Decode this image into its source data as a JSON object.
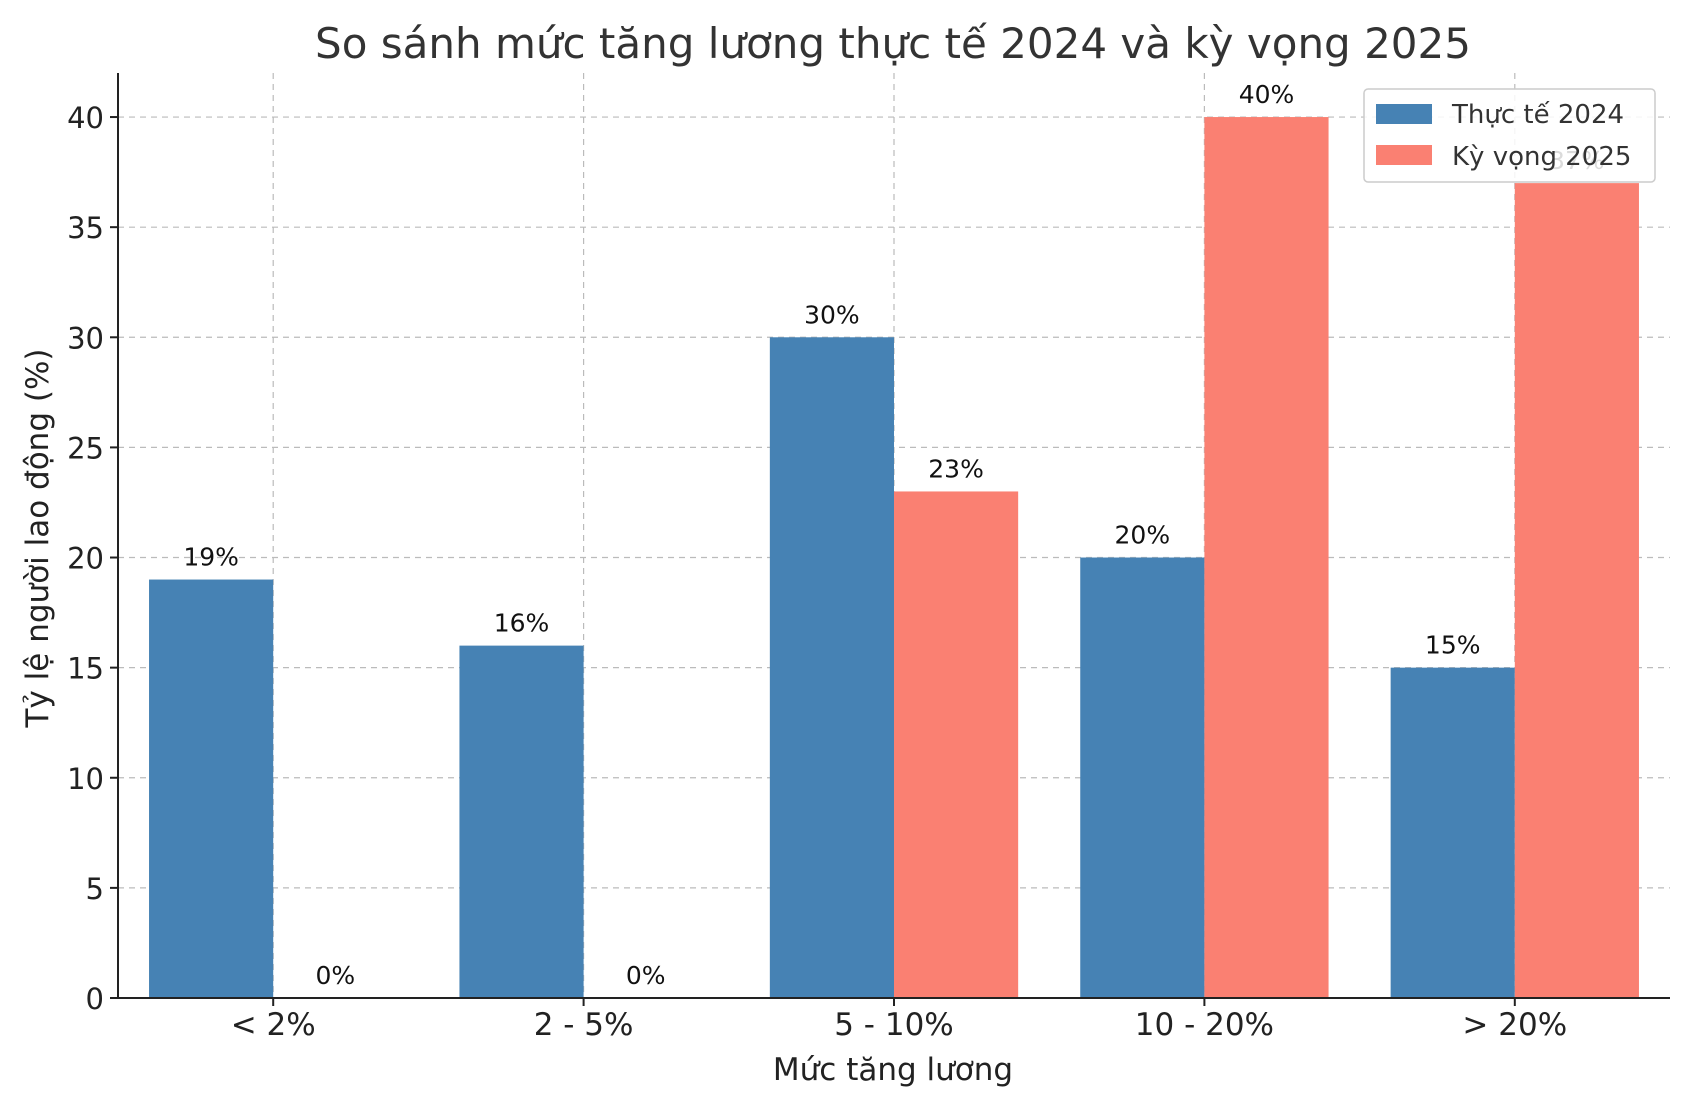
{
  "chart_data": {
    "type": "bar",
    "title": "So sánh mức tăng lương thực tế 2024 và kỳ vọng 2025",
    "xlabel": "Mức tăng lương",
    "ylabel": "Tỷ lệ người lao động (%)",
    "categories": [
      "< 2%",
      "2 - 5%",
      "5 - 10%",
      "10 - 20%",
      "> 20%"
    ],
    "series": [
      {
        "name": "Thực tế 2024",
        "values": [
          19,
          16,
          30,
          20,
          15
        ],
        "color": "#4682b4"
      },
      {
        "name": "Kỳ vọng 2025",
        "values": [
          0,
          0,
          23,
          40,
          37
        ],
        "color": "#fa8072"
      }
    ],
    "ylim": [
      0,
      42
    ],
    "yticks": [
      0,
      5,
      10,
      15,
      20,
      25,
      30,
      35,
      40
    ],
    "grid": true,
    "grid_style": "dashed",
    "legend_position": "top-right",
    "value_label_suffix": "%"
  }
}
